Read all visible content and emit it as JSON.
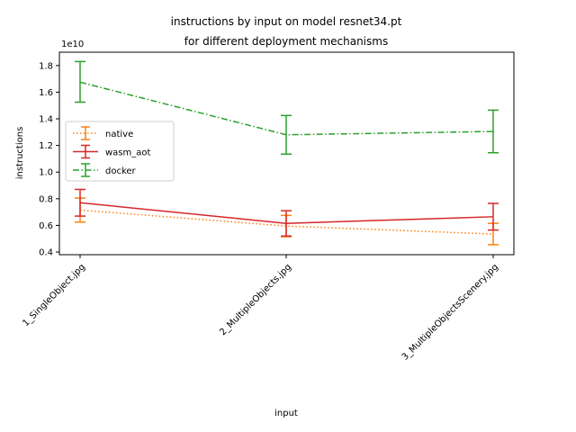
{
  "chart_data": {
    "type": "line",
    "title": "instructions by input on model resnet34.pt",
    "subtitle": "for different deployment mechanisms",
    "xlabel": "input",
    "ylabel": "instructions",
    "y_offset_label": "1e10",
    "y_scale_multiplier": 10000000000,
    "categories": [
      "1_SingleObject.jpg",
      "2_MultipleObjects.jpg",
      "3_MultipleObjectsScenery.jpg"
    ],
    "ylim": [
      0.38,
      1.9
    ],
    "yticks": [
      0.4,
      0.6,
      0.8,
      1.0,
      1.2,
      1.4,
      1.6,
      1.8
    ],
    "ytick_labels": [
      "0.4",
      "0.6",
      "0.8",
      "1.0",
      "1.2",
      "1.4",
      "1.6",
      "1.8"
    ],
    "grid": false,
    "legend_position": "center-left",
    "series": [
      {
        "name": "native",
        "color": "#ff7f0e",
        "linestyle": "dotted",
        "values": [
          0.715,
          0.595,
          0.535
        ],
        "err_low": [
          0.625,
          0.515,
          0.455
        ],
        "err_high": [
          0.805,
          0.675,
          0.615
        ]
      },
      {
        "name": "wasm_aot",
        "color": "#d62728",
        "linestyle": "solid",
        "values": [
          0.77,
          0.615,
          0.665
        ],
        "err_low": [
          0.67,
          0.52,
          0.565
        ],
        "err_high": [
          0.87,
          0.71,
          0.765
        ]
      },
      {
        "name": "docker",
        "color": "#2ca02c",
        "linestyle": "dashdot",
        "values": [
          1.675,
          1.28,
          1.305
        ],
        "err_low": [
          1.525,
          1.135,
          1.145
        ],
        "err_high": [
          1.83,
          1.425,
          1.465
        ]
      }
    ]
  }
}
